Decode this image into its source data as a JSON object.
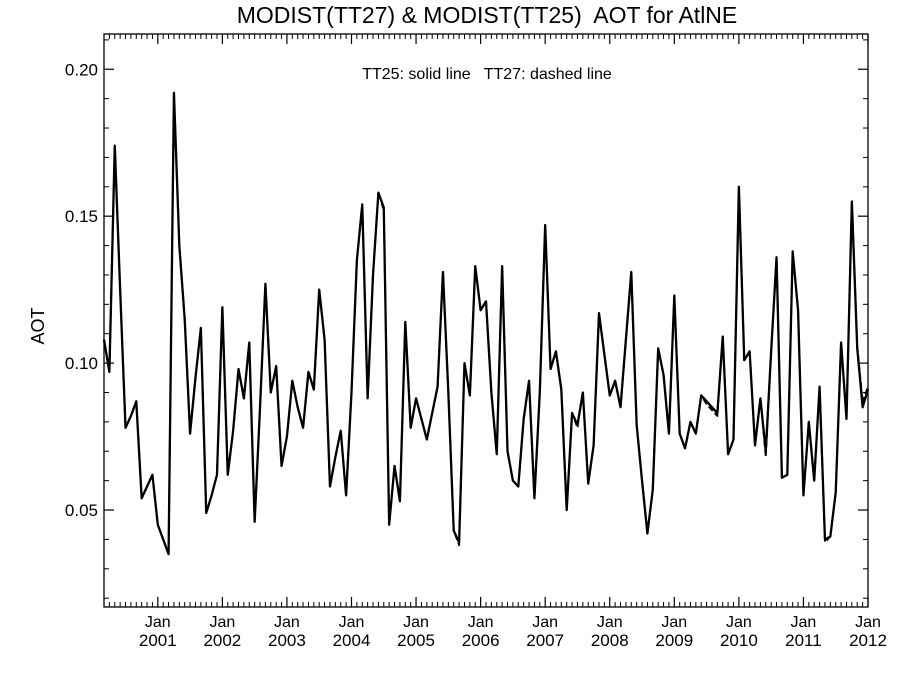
{
  "chart_data": {
    "type": "line",
    "title": "MODIST(TT27) & MODIST(TT25)  AOT for AtlNE",
    "ylabel": "AOT",
    "annotation": "TT25: solid line   TT27: dashed line",
    "ylim": [
      0.017,
      0.212
    ],
    "y_ticks": [
      "0.05",
      "0.10",
      "0.15",
      "0.20"
    ],
    "x_start": "2000-03",
    "x_ticks": [
      {
        "top": "Jan",
        "bottom": "2001"
      },
      {
        "top": "Jan",
        "bottom": "2002"
      },
      {
        "top": "Jan",
        "bottom": "2003"
      },
      {
        "top": "Jan",
        "bottom": "2004"
      },
      {
        "top": "Jan",
        "bottom": "2005"
      },
      {
        "top": "Jan",
        "bottom": "2006"
      },
      {
        "top": "Jan",
        "bottom": "2007"
      },
      {
        "top": "Jan",
        "bottom": "2008"
      },
      {
        "top": "Jan",
        "bottom": "2009"
      },
      {
        "top": "Jan",
        "bottom": "2010"
      },
      {
        "top": "Jan",
        "bottom": "2011"
      },
      {
        "top": "Jan",
        "bottom": "2012"
      }
    ],
    "series": [
      {
        "name": "TT25",
        "style": "solid",
        "values": [
          0.108,
          0.097,
          0.174,
          0.125,
          0.078,
          0.082,
          0.087,
          0.054,
          0.058,
          0.062,
          0.045,
          0.04,
          0.035,
          0.192,
          0.14,
          0.115,
          0.076,
          0.095,
          0.112,
          0.049,
          0.055,
          0.062,
          0.119,
          0.062,
          0.077,
          0.098,
          0.088,
          0.107,
          0.046,
          0.085,
          0.127,
          0.09,
          0.099,
          0.065,
          0.075,
          0.094,
          0.085,
          0.078,
          0.097,
          0.091,
          0.125,
          0.108,
          0.058,
          0.068,
          0.077,
          0.055,
          0.09,
          0.135,
          0.154,
          0.088,
          0.13,
          0.158,
          0.153,
          0.045,
          0.065,
          0.053,
          0.114,
          0.078,
          0.088,
          0.081,
          0.074,
          0.083,
          0.092,
          0.131,
          0.09,
          0.043,
          0.039,
          0.1,
          0.089,
          0.133,
          0.118,
          0.121,
          0.09,
          0.069,
          0.133,
          0.07,
          0.06,
          0.058,
          0.081,
          0.094,
          0.054,
          0.09,
          0.147,
          0.098,
          0.104,
          0.091,
          0.05,
          0.083,
          0.079,
          0.09,
          0.059,
          0.072,
          0.117,
          0.103,
          0.089,
          0.094,
          0.085,
          0.108,
          0.131,
          0.079,
          0.06,
          0.042,
          0.057,
          0.105,
          0.096,
          0.076,
          0.123,
          0.076,
          0.071,
          0.08,
          0.076,
          0.089,
          0.087,
          0.085,
          0.083,
          0.109,
          0.069,
          0.074,
          0.16,
          0.101,
          0.104,
          0.072,
          0.088,
          0.07,
          0.104,
          0.136,
          0.061,
          0.062,
          0.138,
          0.118,
          0.055,
          0.08,
          0.06,
          0.092,
          0.04,
          0.041,
          0.056,
          0.107,
          0.081,
          0.155,
          0.105,
          0.085,
          0.091
        ]
      },
      {
        "name": "TT27",
        "style": "dashed",
        "values": [
          0.108,
          0.097,
          0.174,
          0.125,
          0.078,
          0.082,
          0.087,
          0.054,
          0.058,
          0.062,
          0.045,
          0.04,
          0.035,
          0.192,
          0.14,
          0.115,
          0.076,
          0.095,
          0.112,
          0.049,
          0.055,
          0.062,
          0.119,
          0.062,
          0.077,
          0.098,
          0.088,
          0.107,
          0.046,
          0.085,
          0.127,
          0.09,
          0.099,
          0.065,
          0.075,
          0.094,
          0.085,
          0.078,
          0.097,
          0.091,
          0.125,
          0.108,
          0.058,
          0.068,
          0.077,
          0.055,
          0.09,
          0.135,
          0.154,
          0.088,
          0.13,
          0.158,
          0.152,
          0.045,
          0.065,
          0.053,
          0.114,
          0.078,
          0.088,
          0.081,
          0.074,
          0.083,
          0.092,
          0.131,
          0.09,
          0.043,
          0.038,
          0.1,
          0.089,
          0.133,
          0.118,
          0.121,
          0.09,
          0.069,
          0.133,
          0.07,
          0.06,
          0.058,
          0.081,
          0.094,
          0.054,
          0.09,
          0.147,
          0.098,
          0.104,
          0.091,
          0.05,
          0.083,
          0.078,
          0.09,
          0.059,
          0.072,
          0.117,
          0.103,
          0.089,
          0.094,
          0.085,
          0.108,
          0.131,
          0.079,
          0.06,
          0.042,
          0.057,
          0.105,
          0.096,
          0.076,
          0.123,
          0.076,
          0.071,
          0.08,
          0.076,
          0.089,
          0.086,
          0.084,
          0.082,
          0.109,
          0.069,
          0.074,
          0.16,
          0.101,
          0.104,
          0.072,
          0.088,
          0.068,
          0.104,
          0.136,
          0.061,
          0.062,
          0.138,
          0.118,
          0.055,
          0.08,
          0.06,
          0.092,
          0.039,
          0.041,
          0.056,
          0.107,
          0.081,
          0.155,
          0.106,
          0.087,
          0.092
        ]
      }
    ]
  }
}
